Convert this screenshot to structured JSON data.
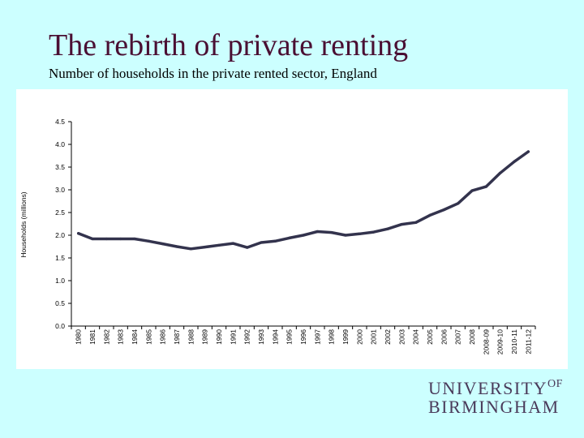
{
  "slide": {
    "title": "The rebirth of private renting",
    "subtitle": "Number of households in the private rented sector, England"
  },
  "logo": {
    "line1": "UNIVERSITY",
    "of": "OF",
    "line2": "BIRMINGHAM"
  },
  "colors": {
    "background": "#ccffff",
    "title": "#4a0f33",
    "line": "#33334d",
    "logo": "#4a3a5a"
  },
  "chart_data": {
    "type": "line",
    "title": "",
    "xlabel": "",
    "ylabel": "Households (millions)",
    "ylim": [
      0,
      4.5
    ],
    "yticks": [
      "0.0",
      "0.5",
      "1.0",
      "1.5",
      "2.0",
      "2.5",
      "3.0",
      "3.5",
      "4.0",
      "4.5"
    ],
    "grid": false,
    "legend": "none",
    "categories": [
      "1980",
      "1981",
      "1982",
      "1983",
      "1984",
      "1985",
      "1986",
      "1987",
      "1988",
      "1989",
      "1990",
      "1991",
      "1992",
      "1993",
      "1994",
      "1995",
      "1996",
      "1997",
      "1998",
      "1999",
      "2000",
      "2001",
      "2002",
      "2003",
      "2004",
      "2005",
      "2006",
      "2007",
      "2008",
      "2008-09",
      "2009-10",
      "2010-11",
      "2011-12"
    ],
    "series": [
      {
        "values": [
          2.04,
          1.92,
          1.92,
          1.92,
          1.92,
          1.87,
          1.81,
          1.75,
          1.7,
          1.74,
          1.78,
          1.82,
          1.73,
          1.84,
          1.87,
          1.94,
          2.0,
          2.08,
          2.06,
          2.0,
          2.03,
          2.07,
          2.14,
          2.24,
          2.28,
          2.44,
          2.56,
          2.7,
          2.98,
          3.07,
          3.37,
          3.62,
          3.84
        ]
      }
    ]
  }
}
